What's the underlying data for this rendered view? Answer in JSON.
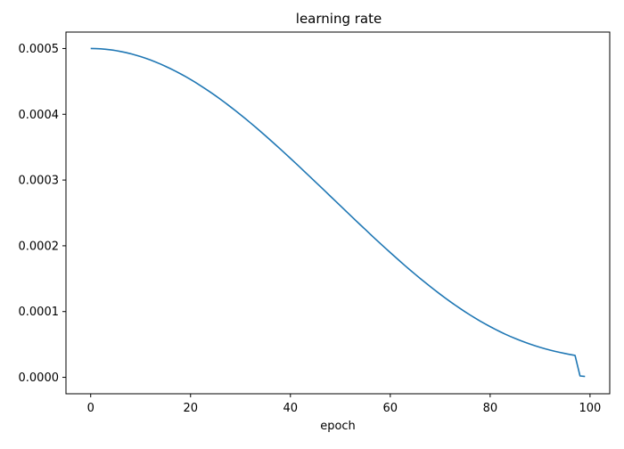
{
  "chart_data": {
    "type": "line",
    "title": "learning rate",
    "xlabel": "epoch",
    "ylabel": "",
    "xlim": [
      -4.95,
      103.95
    ],
    "ylim": [
      -2.5e-05,
      0.000525
    ],
    "x_ticks": [
      0,
      20,
      40,
      60,
      80,
      100
    ],
    "x_tick_labels": [
      "0",
      "20",
      "40",
      "60",
      "80",
      "100"
    ],
    "y_ticks": [
      0.0,
      0.0001,
      0.0002,
      0.0003,
      0.0004,
      0.0005
    ],
    "y_tick_labels": [
      "0.0000",
      "0.0001",
      "0.0002",
      "0.0003",
      "0.0004",
      "0.0005"
    ],
    "grid": false,
    "line_color": "#1f77b4",
    "series": [
      {
        "x": [
          0,
          1,
          2,
          3,
          4,
          5,
          6,
          7,
          8,
          9,
          10,
          11,
          12,
          13,
          14,
          15,
          16,
          17,
          18,
          19,
          20,
          21,
          22,
          23,
          24,
          25,
          26,
          27,
          28,
          29,
          30,
          31,
          32,
          33,
          34,
          35,
          36,
          37,
          38,
          39,
          40,
          41,
          42,
          43,
          44,
          45,
          46,
          47,
          48,
          49,
          50,
          51,
          52,
          53,
          54,
          55,
          56,
          57,
          58,
          59,
          60,
          61,
          62,
          63,
          64,
          65,
          66,
          67,
          68,
          69,
          70,
          71,
          72,
          73,
          74,
          75,
          76,
          77,
          78,
          79,
          80,
          81,
          82,
          83,
          84,
          85,
          86,
          87,
          88,
          89,
          90,
          91,
          92,
          93,
          94,
          95,
          96,
          97,
          98,
          99
        ],
        "y": [
          0.0005,
          0.0004999,
          0.0004995,
          0.0004989,
          0.000498,
          0.0004969,
          0.0004955,
          0.0004939,
          0.0004921,
          0.00049,
          0.0004877,
          0.0004852,
          0.0004825,
          0.0004795,
          0.0004763,
          0.0004729,
          0.0004693,
          0.0004655,
          0.0004615,
          0.0004573,
          0.0004529,
          0.0004483,
          0.0004435,
          0.0004386,
          0.0004335,
          0.0004282,
          0.0004227,
          0.0004171,
          0.0004113,
          0.0004054,
          0.0003994,
          0.0003932,
          0.0003869,
          0.0003805,
          0.000374,
          0.0003673,
          0.0003606,
          0.0003538,
          0.0003469,
          0.00034,
          0.000333,
          0.0003259,
          0.0003188,
          0.0003116,
          0.0003044,
          0.0002972,
          0.00029,
          0.0002827,
          0.0002754,
          0.0002682,
          0.0002609,
          0.0002536,
          0.0002464,
          0.0002391,
          0.0002319,
          0.0002248,
          0.0002176,
          0.0002105,
          0.0002035,
          0.0001966,
          0.0001897,
          0.0001829,
          0.0001762,
          0.0001695,
          0.000163,
          0.0001566,
          0.0001503,
          0.0001441,
          0.000138,
          0.0001321,
          0.0001263,
          0.0001206,
          0.0001151,
          0.0001098,
          0.0001046,
          9.96e-05,
          9.47e-05,
          9e-05,
          8.55e-05,
          8.12e-05,
          7.71e-05,
          7.31e-05,
          6.93e-05,
          6.57e-05,
          6.23e-05,
          5.91e-05,
          5.61e-05,
          5.32e-05,
          5.05e-05,
          4.8e-05,
          4.56e-05,
          4.34e-05,
          4.14e-05,
          3.95e-05,
          3.78e-05,
          3.62e-05,
          3.47e-05,
          3.33e-05,
          2.1e-06,
          1.3e-06
        ]
      }
    ]
  }
}
